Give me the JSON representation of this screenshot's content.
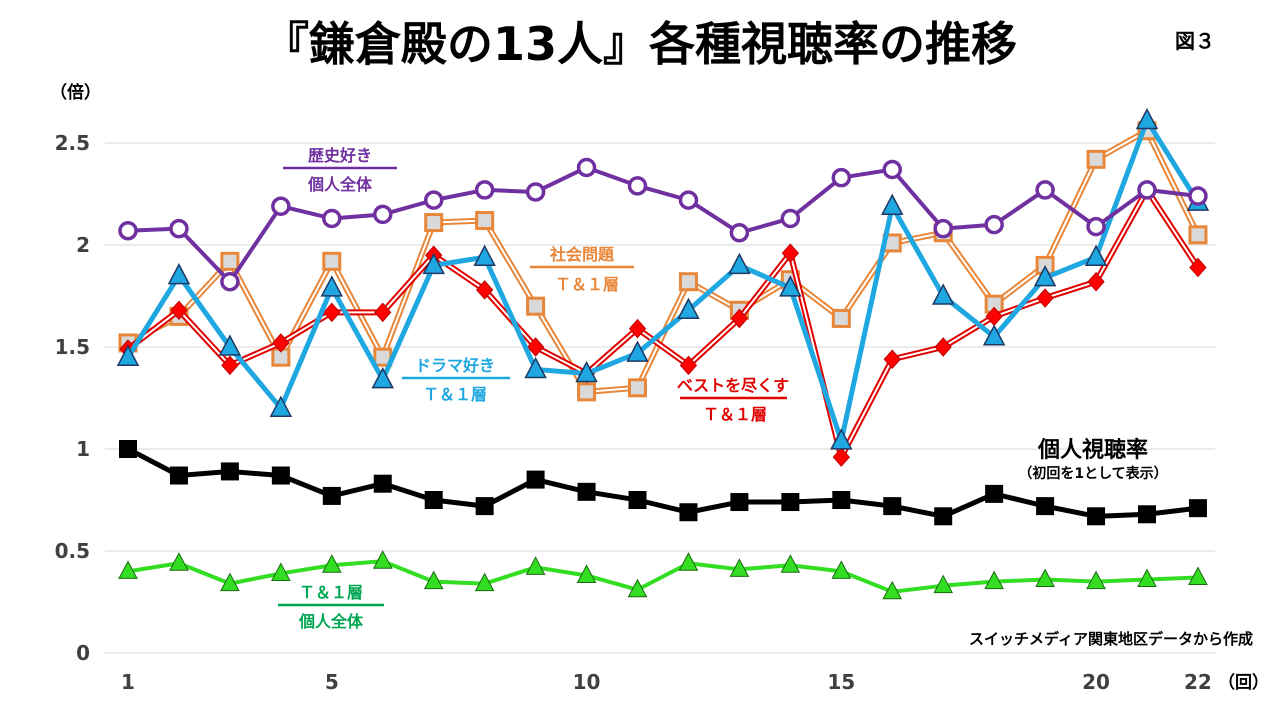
{
  "chart_data": {
    "type": "line",
    "title": "『鎌倉殿の13人』各種視聴率の推移",
    "figure_label": "図３",
    "y_unit": "（倍）",
    "x_unit": "（回）",
    "source_note": "スイッチメディア関東地区データから作成",
    "ylim": [
      0,
      2.5
    ],
    "yticks": [
      "0",
      "0.5",
      "1",
      "1.5",
      "2",
      "2.5"
    ],
    "x": [
      1,
      2,
      3,
      4,
      5,
      6,
      7,
      8,
      9,
      10,
      11,
      12,
      13,
      14,
      15,
      16,
      17,
      18,
      19,
      20,
      21,
      22
    ],
    "xticks": [
      {
        "x": 1,
        "label": "1"
      },
      {
        "x": 5,
        "label": "5"
      },
      {
        "x": 10,
        "label": "10"
      },
      {
        "x": 15,
        "label": "15"
      },
      {
        "x": 20,
        "label": "20"
      },
      {
        "x": 22,
        "label": "22"
      }
    ],
    "grid": true,
    "series": [
      {
        "name_line1": "社会問題",
        "name_line2": "Ｔ＆１層",
        "color": "#E8873A",
        "values": [
          1.52,
          1.65,
          1.92,
          1.45,
          1.92,
          1.45,
          2.11,
          2.12,
          1.7,
          1.28,
          1.3,
          1.82,
          1.68,
          1.83,
          1.64,
          2.01,
          2.06,
          1.71,
          1.9,
          2.42,
          2.56,
          2.05
        ]
      },
      {
        "name_line1": "ベストを尽くす",
        "name_line2": "Ｔ＆１層",
        "color": "#E00000",
        "values": [
          1.49,
          1.68,
          1.41,
          1.52,
          1.67,
          1.67,
          1.95,
          1.78,
          1.5,
          1.37,
          1.59,
          1.41,
          1.64,
          1.96,
          0.96,
          1.44,
          1.5,
          1.65,
          1.74,
          1.82,
          2.27,
          1.89
        ]
      },
      {
        "name_line1": "ドラマ好き",
        "name_line2": "Ｔ＆１層",
        "color": "#1EA7E0",
        "values": [
          1.45,
          1.85,
          1.5,
          1.2,
          1.79,
          1.34,
          1.9,
          1.94,
          1.39,
          1.37,
          1.47,
          1.68,
          1.9,
          1.79,
          1.04,
          2.19,
          1.75,
          1.55,
          1.84,
          1.94,
          2.61,
          2.21
        ]
      },
      {
        "name_line1": "歴史好き",
        "name_line2": "個人全体",
        "color": "#7030A0",
        "values": [
          2.07,
          2.08,
          1.82,
          2.19,
          2.13,
          2.15,
          2.22,
          2.27,
          2.26,
          2.38,
          2.29,
          2.22,
          2.06,
          2.13,
          2.33,
          2.37,
          2.08,
          2.1,
          2.27,
          2.09,
          2.27,
          2.24
        ]
      },
      {
        "name_line1": "個人視聴率",
        "name_line2": "（初回を1として表示）",
        "color": "#000000",
        "values": [
          1.0,
          0.87,
          0.89,
          0.87,
          0.77,
          0.83,
          0.75,
          0.72,
          0.85,
          0.79,
          0.75,
          0.69,
          0.74,
          0.74,
          0.75,
          0.72,
          0.67,
          0.78,
          0.72,
          0.67,
          0.68,
          0.71
        ]
      },
      {
        "name_line1": "Ｔ＆１層",
        "name_line2": "個人全体",
        "color": "#33DD22",
        "values": [
          0.4,
          0.44,
          0.34,
          0.39,
          0.43,
          0.45,
          0.35,
          0.34,
          0.42,
          0.38,
          0.31,
          0.44,
          0.41,
          0.43,
          0.4,
          0.3,
          0.33,
          0.35,
          0.36,
          0.35,
          0.36,
          0.37
        ]
      }
    ]
  }
}
